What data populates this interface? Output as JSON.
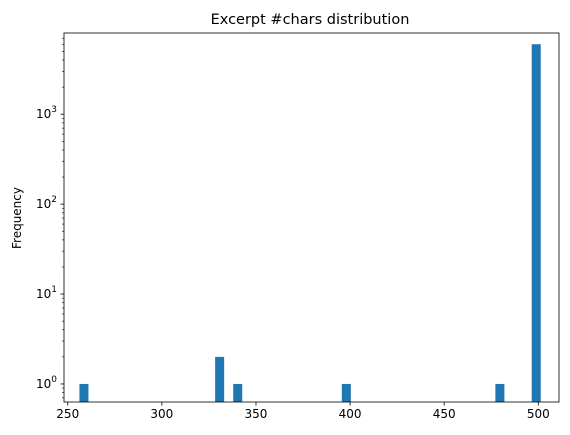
{
  "chart_data": {
    "type": "bar",
    "title": "Excerpt #chars distribution",
    "xlabel": "",
    "ylabel": "Frequency",
    "y_scale": "log",
    "xlim": [
      248,
      511
    ],
    "ylim": [
      0.63,
      8000
    ],
    "bar_width": 4.8,
    "grid": false,
    "color": "#1f77b4",
    "x_ticks": [
      {
        "value": 250,
        "label": "250"
      },
      {
        "value": 300,
        "label": "300"
      },
      {
        "value": 350,
        "label": "350"
      },
      {
        "value": 400,
        "label": "400"
      },
      {
        "value": 450,
        "label": "450"
      },
      {
        "value": 500,
        "label": "500"
      }
    ],
    "y_ticks": [
      {
        "value": 1,
        "base": "10",
        "exp": "0"
      },
      {
        "value": 10,
        "base": "10",
        "exp": "1"
      },
      {
        "value": 100,
        "base": "10",
        "exp": "2"
      },
      {
        "value": 1000,
        "base": "10",
        "exp": "3"
      }
    ],
    "bins": [
      {
        "x": 258.6,
        "count": 1
      },
      {
        "x": 330.7,
        "count": 2
      },
      {
        "x": 340.3,
        "count": 1
      },
      {
        "x": 398.0,
        "count": 1
      },
      {
        "x": 479.6,
        "count": 1
      },
      {
        "x": 498.9,
        "count": 6000
      }
    ]
  }
}
